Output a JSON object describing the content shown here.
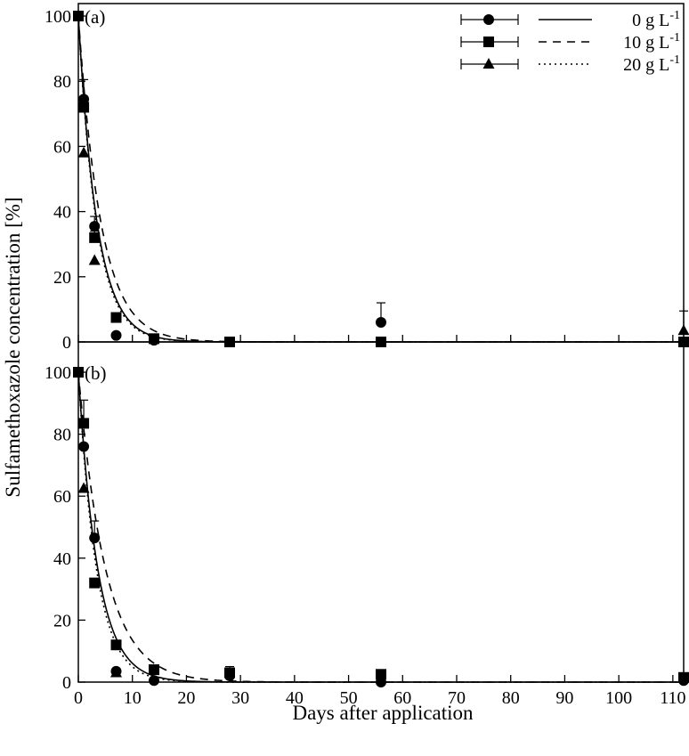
{
  "chart_data": {
    "type": "scatter",
    "xlabel": "Days after application",
    "ylabel": "Sulfamethoxazole concentration [%]",
    "xlim": [
      0,
      112
    ],
    "ylim": [
      0,
      100
    ],
    "x_ticks": [
      0,
      10,
      20,
      30,
      40,
      50,
      60,
      70,
      80,
      90,
      100,
      110
    ],
    "x_tick_labels": [
      "0",
      "10",
      "20",
      "30",
      "40",
      "50",
      "60",
      "70",
      "80",
      "90",
      "100",
      "110"
    ],
    "y_ticks": [
      0,
      20,
      40,
      60,
      80,
      100
    ],
    "y_tick_labels": [
      "0",
      "20",
      "40",
      "60",
      "80",
      "100"
    ],
    "legend": {
      "placement": "top-right",
      "entries": [
        {
          "marker": "circle",
          "line": "solid",
          "label_main": "0 g L",
          "label_sup": "-1"
        },
        {
          "marker": "square",
          "line": "dashed",
          "label_main": "10 g L",
          "label_sup": "-1"
        },
        {
          "marker": "triangle",
          "line": "dotted",
          "label_main": "20 g L",
          "label_sup": "-1"
        }
      ]
    },
    "panels": [
      {
        "label": "(a)",
        "series": [
          {
            "marker": "circle",
            "line": "solid",
            "k": 0.29,
            "points": [
              [
                0,
                100,
                0
              ],
              [
                1,
                74.5,
                6
              ],
              [
                3,
                35.5,
                3
              ],
              [
                7,
                2,
                0
              ],
              [
                14,
                0.5,
                0
              ],
              [
                28,
                0,
                0
              ],
              [
                56,
                6,
                6
              ],
              [
                112,
                0,
                0
              ]
            ]
          },
          {
            "marker": "square",
            "line": "dashed",
            "k": 0.24,
            "points": [
              [
                0,
                100,
                0
              ],
              [
                1,
                72,
                3
              ],
              [
                3,
                32,
                2
              ],
              [
                7,
                7.5,
                0
              ],
              [
                14,
                1,
                0
              ],
              [
                28,
                0,
                0
              ],
              [
                56,
                0,
                0
              ],
              [
                112,
                0,
                0
              ]
            ]
          },
          {
            "marker": "triangle",
            "line": "dotted",
            "k": 0.3,
            "points": [
              [
                1,
                58,
                0
              ],
              [
                3,
                25,
                0
              ],
              [
                112,
                3.5,
                6
              ]
            ]
          }
        ]
      },
      {
        "label": "(b)",
        "series": [
          {
            "marker": "circle",
            "line": "solid",
            "k": 0.28,
            "points": [
              [
                0,
                100,
                0
              ],
              [
                1,
                76,
                0
              ],
              [
                3,
                46.5,
                5.5
              ],
              [
                7,
                3.5,
                0
              ],
              [
                14,
                0.5,
                0
              ],
              [
                28,
                2,
                2
              ],
              [
                56,
                0,
                0
              ],
              [
                112,
                0.5,
                0
              ]
            ]
          },
          {
            "marker": "square",
            "line": "dashed",
            "k": 0.2,
            "points": [
              [
                0,
                100,
                0
              ],
              [
                1,
                83.5,
                7.5
              ],
              [
                3,
                32,
                0
              ],
              [
                7,
                12,
                0
              ],
              [
                14,
                4,
                0
              ],
              [
                28,
                3,
                2
              ],
              [
                56,
                2.5,
                0
              ],
              [
                112,
                1.5,
                0
              ]
            ]
          },
          {
            "marker": "triangle",
            "line": "dotted",
            "k": 0.3,
            "points": [
              [
                1,
                62.5,
                0
              ],
              [
                7,
                3,
                0
              ]
            ]
          }
        ]
      }
    ]
  }
}
